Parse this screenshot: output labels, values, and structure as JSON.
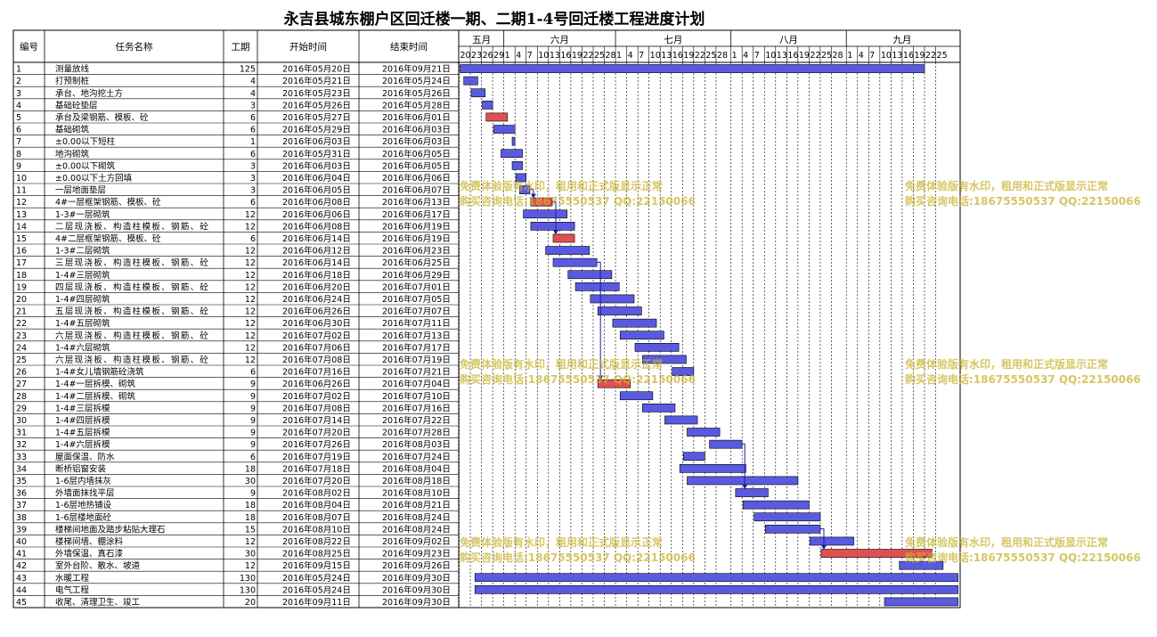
{
  "chart_data": {
    "type": "gantt",
    "title": "永吉县城东棚户区回迁楼一期、二期1-4号回迁楼工程进度计划",
    "columns": [
      "编号",
      "任务名称",
      "工期",
      "开始时间",
      "结束时间"
    ],
    "timeline": {
      "start_date": "2016-05-20",
      "end_date": "2016-09-30",
      "months": [
        {
          "label": "五月",
          "start": "2016-05-20",
          "end": "2016-05-31"
        },
        {
          "label": "六月",
          "start": "2016-06-01",
          "end": "2016-06-30"
        },
        {
          "label": "七月",
          "start": "2016-07-01",
          "end": "2016-07-31"
        },
        {
          "label": "八月",
          "start": "2016-08-01",
          "end": "2016-08-31"
        },
        {
          "label": "九月",
          "start": "2016-09-01",
          "end": "2016-09-30"
        }
      ],
      "day_ticks": [
        {
          "label": "20",
          "date": "2016-05-20"
        },
        {
          "label": "23",
          "date": "2016-05-23"
        },
        {
          "label": "26",
          "date": "2016-05-26"
        },
        {
          "label": "29",
          "date": "2016-05-29"
        },
        {
          "label": "1",
          "date": "2016-06-01"
        },
        {
          "label": "4",
          "date": "2016-06-04"
        },
        {
          "label": "7",
          "date": "2016-06-07"
        },
        {
          "label": "10",
          "date": "2016-06-10"
        },
        {
          "label": "13",
          "date": "2016-06-13"
        },
        {
          "label": "16",
          "date": "2016-06-16"
        },
        {
          "label": "19",
          "date": "2016-06-19"
        },
        {
          "label": "22",
          "date": "2016-06-22"
        },
        {
          "label": "25",
          "date": "2016-06-25"
        },
        {
          "label": "28",
          "date": "2016-06-28"
        },
        {
          "label": "1",
          "date": "2016-07-01"
        },
        {
          "label": "4",
          "date": "2016-07-04"
        },
        {
          "label": "7",
          "date": "2016-07-07"
        },
        {
          "label": "10",
          "date": "2016-07-10"
        },
        {
          "label": "13",
          "date": "2016-07-13"
        },
        {
          "label": "16",
          "date": "2016-07-16"
        },
        {
          "label": "19",
          "date": "2016-07-19"
        },
        {
          "label": "22",
          "date": "2016-07-22"
        },
        {
          "label": "25",
          "date": "2016-07-25"
        },
        {
          "label": "28",
          "date": "2016-07-28"
        },
        {
          "label": "1",
          "date": "2016-08-01"
        },
        {
          "label": "4",
          "date": "2016-08-04"
        },
        {
          "label": "7",
          "date": "2016-08-07"
        },
        {
          "label": "10",
          "date": "2016-08-10"
        },
        {
          "label": "13",
          "date": "2016-08-13"
        },
        {
          "label": "16",
          "date": "2016-08-16"
        },
        {
          "label": "19",
          "date": "2016-08-19"
        },
        {
          "label": "22",
          "date": "2016-08-22"
        },
        {
          "label": "25",
          "date": "2016-08-25"
        },
        {
          "label": "28",
          "date": "2016-08-28"
        },
        {
          "label": "1",
          "date": "2016-09-01"
        },
        {
          "label": "4",
          "date": "2016-09-04"
        },
        {
          "label": "7",
          "date": "2016-09-07"
        },
        {
          "label": "10",
          "date": "2016-09-10"
        },
        {
          "label": "13",
          "date": "2016-09-13"
        },
        {
          "label": "16",
          "date": "2016-09-16"
        },
        {
          "label": "19",
          "date": "2016-09-19"
        },
        {
          "label": "22",
          "date": "2016-09-22"
        },
        {
          "label": "25",
          "date": "2016-09-25"
        }
      ]
    },
    "colors": {
      "normal": "#5a5ae0",
      "critical": "#e05050",
      "arrow": "#1a1aa8",
      "grid": "#000000"
    },
    "tasks": [
      {
        "id": "1",
        "name": "测量放线",
        "duration": 125,
        "start": "2016年05月20日",
        "end": "2016年09月21日",
        "start_date": "2016-05-20",
        "end_date": "2016-09-21",
        "critical": false
      },
      {
        "id": "2",
        "name": "打预制桩",
        "duration": 4,
        "start": "2016年05月21日",
        "end": "2016年05月24日",
        "start_date": "2016-05-21",
        "end_date": "2016-05-24",
        "critical": false
      },
      {
        "id": "3",
        "name": "承台、地沟挖土方",
        "duration": 4,
        "start": "2016年05月23日",
        "end": "2016年05月26日",
        "start_date": "2016-05-23",
        "end_date": "2016-05-26",
        "critical": false
      },
      {
        "id": "4",
        "name": "基础砼垫层",
        "duration": 3,
        "start": "2016年05月26日",
        "end": "2016年05月28日",
        "start_date": "2016-05-26",
        "end_date": "2016-05-28",
        "critical": false
      },
      {
        "id": "5",
        "name": "承台及梁钢筋、模板、砼",
        "duration": 6,
        "start": "2016年05月27日",
        "end": "2016年06月01日",
        "start_date": "2016-05-27",
        "end_date": "2016-06-01",
        "critical": true
      },
      {
        "id": "6",
        "name": "基础砌筑",
        "duration": 6,
        "start": "2016年05月29日",
        "end": "2016年06月03日",
        "start_date": "2016-05-29",
        "end_date": "2016-06-03",
        "critical": false
      },
      {
        "id": "7",
        "name": "±0.00以下短柱",
        "duration": 1,
        "start": "2016年06月03日",
        "end": "2016年06月03日",
        "start_date": "2016-06-03",
        "end_date": "2016-06-03",
        "critical": false
      },
      {
        "id": "8",
        "name": "地沟砌筑",
        "duration": 6,
        "start": "2016年05月31日",
        "end": "2016年06月05日",
        "start_date": "2016-05-31",
        "end_date": "2016-06-05",
        "critical": false
      },
      {
        "id": "9",
        "name": "±0.00以下砌筑",
        "duration": 3,
        "start": "2016年06月03日",
        "end": "2016年06月05日",
        "start_date": "2016-06-03",
        "end_date": "2016-06-05",
        "critical": false
      },
      {
        "id": "10",
        "name": "±0.00以下土方回填",
        "duration": 3,
        "start": "2016年06月04日",
        "end": "2016年06月06日",
        "start_date": "2016-06-04",
        "end_date": "2016-06-06",
        "critical": false
      },
      {
        "id": "11",
        "name": "一层地面垫层",
        "duration": 3,
        "start": "2016年06月05日",
        "end": "2016年06月07日",
        "start_date": "2016-06-05",
        "end_date": "2016-06-07",
        "critical": false
      },
      {
        "id": "12",
        "name": "4#一层框架钢筋、模板、砼",
        "duration": 6,
        "start": "2016年06月08日",
        "end": "2016年06月13日",
        "start_date": "2016-06-08",
        "end_date": "2016-06-13",
        "critical": true
      },
      {
        "id": "13",
        "name": "1-3#一层砌筑",
        "duration": 12,
        "start": "2016年06月06日",
        "end": "2016年06月17日",
        "start_date": "2016-06-06",
        "end_date": "2016-06-17",
        "critical": false
      },
      {
        "id": "14",
        "name": "二层现浇板、构造柱模板、钢筋、砼",
        "duration": 12,
        "start": "2016年06月08日",
        "end": "2016年06月19日",
        "start_date": "2016-06-08",
        "end_date": "2016-06-19",
        "critical": false
      },
      {
        "id": "15",
        "name": "4#二层框架钢筋、模板、砼",
        "duration": 6,
        "start": "2016年06月14日",
        "end": "2016年06月19日",
        "start_date": "2016-06-14",
        "end_date": "2016-06-19",
        "critical": true
      },
      {
        "id": "16",
        "name": "1-3#二层砌筑",
        "duration": 12,
        "start": "2016年06月12日",
        "end": "2016年06月23日",
        "start_date": "2016-06-12",
        "end_date": "2016-06-23",
        "critical": false
      },
      {
        "id": "17",
        "name": "三层现浇板、构造柱模板、钢筋、砼",
        "duration": 12,
        "start": "2016年06月14日",
        "end": "2016年06月25日",
        "start_date": "2016-06-14",
        "end_date": "2016-06-25",
        "critical": false
      },
      {
        "id": "18",
        "name": "1-4#三层砌筑",
        "duration": 12,
        "start": "2016年06月18日",
        "end": "2016年06月29日",
        "start_date": "2016-06-18",
        "end_date": "2016-06-29",
        "critical": false
      },
      {
        "id": "19",
        "name": "四层现浇板、构造柱模板、钢筋、砼",
        "duration": 12,
        "start": "2016年06月20日",
        "end": "2016年07月01日",
        "start_date": "2016-06-20",
        "end_date": "2016-07-01",
        "critical": false
      },
      {
        "id": "20",
        "name": "1-4#四层砌筑",
        "duration": 12,
        "start": "2016年06月24日",
        "end": "2016年07月05日",
        "start_date": "2016-06-24",
        "end_date": "2016-07-05",
        "critical": false
      },
      {
        "id": "21",
        "name": "五层现浇板、构造柱模板、钢筋、砼",
        "duration": 12,
        "start": "2016年06月26日",
        "end": "2016年07月07日",
        "start_date": "2016-06-26",
        "end_date": "2016-07-07",
        "critical": false
      },
      {
        "id": "22",
        "name": "1-4#五层砌筑",
        "duration": 12,
        "start": "2016年06月30日",
        "end": "2016年07月11日",
        "start_date": "2016-06-30",
        "end_date": "2016-07-11",
        "critical": false
      },
      {
        "id": "23",
        "name": "六层现浇板、构造柱模板、钢筋、砼",
        "duration": 12,
        "start": "2016年07月02日",
        "end": "2016年07月13日",
        "start_date": "2016-07-02",
        "end_date": "2016-07-13",
        "critical": false
      },
      {
        "id": "24",
        "name": "1-4#六层砌筑",
        "duration": 12,
        "start": "2016年07月06日",
        "end": "2016年07月17日",
        "start_date": "2016-07-06",
        "end_date": "2016-07-17",
        "critical": false
      },
      {
        "id": "25",
        "name": "六层现浇板、构造柱模板、钢筋、砼",
        "duration": 12,
        "start": "2016年07月08日",
        "end": "2016年07月19日",
        "start_date": "2016-07-08",
        "end_date": "2016-07-19",
        "critical": false
      },
      {
        "id": "26",
        "name": "1-4#女儿墙钢筋砼浇筑",
        "duration": 6,
        "start": "2016年07月16日",
        "end": "2016年07月21日",
        "start_date": "2016-07-16",
        "end_date": "2016-07-21",
        "critical": false
      },
      {
        "id": "27",
        "name": "1-4#一层拆模、砌筑",
        "duration": 9,
        "start": "2016年06月26日",
        "end": "2016年07月04日",
        "start_date": "2016-06-26",
        "end_date": "2016-07-04",
        "critical": true
      },
      {
        "id": "28",
        "name": "1-4#二层拆模、砌筑",
        "duration": 9,
        "start": "2016年07月02日",
        "end": "2016年07月10日",
        "start_date": "2016-07-02",
        "end_date": "2016-07-10",
        "critical": false
      },
      {
        "id": "29",
        "name": "1-4#三层拆模",
        "duration": 9,
        "start": "2016年07月08日",
        "end": "2016年07月16日",
        "start_date": "2016-07-08",
        "end_date": "2016-07-16",
        "critical": false
      },
      {
        "id": "30",
        "name": "1-4#四层拆模",
        "duration": 9,
        "start": "2016年07月14日",
        "end": "2016年07月22日",
        "start_date": "2016-07-14",
        "end_date": "2016-07-22",
        "critical": false
      },
      {
        "id": "31",
        "name": "1-4#五层拆模",
        "duration": 9,
        "start": "2016年07月20日",
        "end": "2016年07月28日",
        "start_date": "2016-07-20",
        "end_date": "2016-07-28",
        "critical": false
      },
      {
        "id": "32",
        "name": "1-4#六层拆模",
        "duration": 9,
        "start": "2016年07月26日",
        "end": "2016年08月03日",
        "start_date": "2016-07-26",
        "end_date": "2016-08-03",
        "critical": false
      },
      {
        "id": "33",
        "name": "屋面保温、防水",
        "duration": 6,
        "start": "2016年07月19日",
        "end": "2016年07月24日",
        "start_date": "2016-07-19",
        "end_date": "2016-07-24",
        "critical": false
      },
      {
        "id": "34",
        "name": "断桥铝窗安装",
        "duration": 18,
        "start": "2016年07月18日",
        "end": "2016年08月04日",
        "start_date": "2016-07-18",
        "end_date": "2016-08-04",
        "critical": false
      },
      {
        "id": "35",
        "name": "1-6层内墙抹灰",
        "duration": 30,
        "start": "2016年07月20日",
        "end": "2016年08月18日",
        "start_date": "2016-07-20",
        "end_date": "2016-08-18",
        "critical": false
      },
      {
        "id": "36",
        "name": "外墙面抹找平层",
        "duration": 9,
        "start": "2016年08月02日",
        "end": "2016年08月10日",
        "start_date": "2016-08-02",
        "end_date": "2016-08-10",
        "critical": false
      },
      {
        "id": "37",
        "name": "1-6层地热铺设",
        "duration": 18,
        "start": "2016年08月04日",
        "end": "2016年08月21日",
        "start_date": "2016-08-04",
        "end_date": "2016-08-21",
        "critical": false
      },
      {
        "id": "38",
        "name": "1-6层楼地面砼",
        "duration": 18,
        "start": "2016年08月07日",
        "end": "2016年08月24日",
        "start_date": "2016-08-07",
        "end_date": "2016-08-24",
        "critical": false
      },
      {
        "id": "39",
        "name": "楼梯间地面及踏步粘贴大理石",
        "duration": 15,
        "start": "2016年08月10日",
        "end": "2016年08月24日",
        "start_date": "2016-08-10",
        "end_date": "2016-08-24",
        "critical": false
      },
      {
        "id": "40",
        "name": "楼梯间墙、棚涂料",
        "duration": 12,
        "start": "2016年08月22日",
        "end": "2016年09月02日",
        "start_date": "2016-08-22",
        "end_date": "2016-09-02",
        "critical": false
      },
      {
        "id": "41",
        "name": "外墙保温、真石漆",
        "duration": 30,
        "start": "2016年08月25日",
        "end": "2016年09月23日",
        "start_date": "2016-08-25",
        "end_date": "2016-09-23",
        "critical": true
      },
      {
        "id": "42",
        "name": "室外台阶、散水、坡道",
        "duration": 12,
        "start": "2016年09月15日",
        "end": "2016年09月26日",
        "start_date": "2016-09-15",
        "end_date": "2016-09-26",
        "critical": false
      },
      {
        "id": "43",
        "name": "水暖工程",
        "duration": 130,
        "start": "2016年05月24日",
        "end": "2016年09月30日",
        "start_date": "2016-05-24",
        "end_date": "2016-09-30",
        "critical": false
      },
      {
        "id": "44",
        "name": "电气工程",
        "duration": 130,
        "start": "2016年05月24日",
        "end": "2016年09月30日",
        "start_date": "2016-05-24",
        "end_date": "2016-09-30",
        "critical": false
      },
      {
        "id": "45",
        "name": "收尾、清理卫生、竣工",
        "duration": 20,
        "start": "2016年09月11日",
        "end": "2016年09月30日",
        "start_date": "2016-09-11",
        "end_date": "2016-09-30",
        "critical": false
      }
    ],
    "dependencies": [
      {
        "from": "11",
        "to": "12"
      },
      {
        "from": "12",
        "to": "15"
      },
      {
        "from": "17",
        "to": "27"
      },
      {
        "from": "32",
        "to": "36"
      },
      {
        "from": "39",
        "to": "41"
      }
    ]
  },
  "watermark": {
    "line1": "免费体验版有水印，租用和正式版显示正常",
    "line2": "购买咨询电话:18675550537 QQ:22150066"
  }
}
